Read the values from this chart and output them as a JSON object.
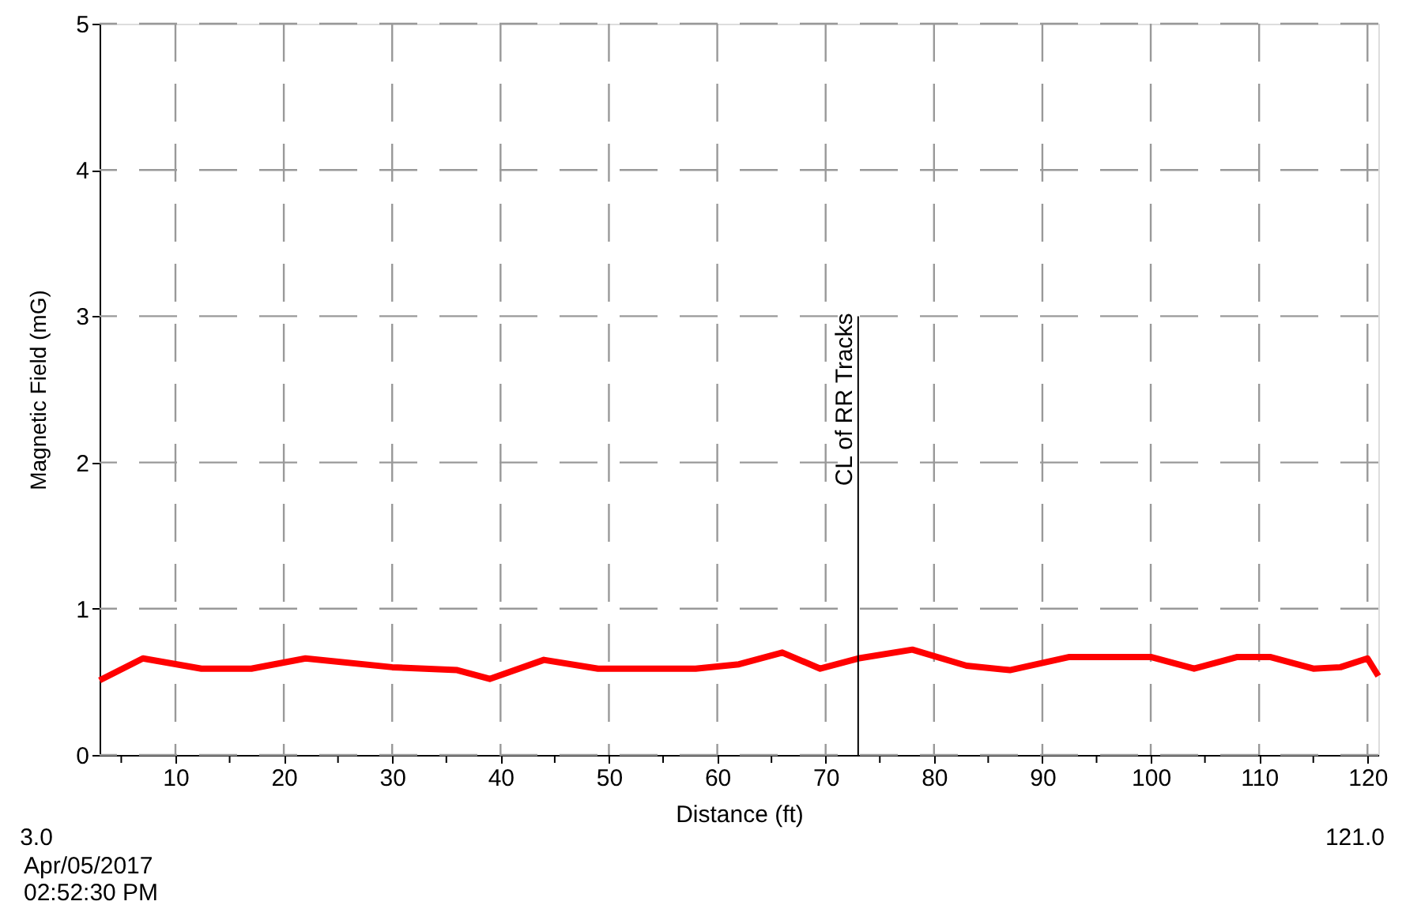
{
  "chart_data": {
    "type": "line",
    "xlabel": "Distance (ft)",
    "ylabel": "Magnetic Field (mG)",
    "x": [
      3,
      7,
      12.4,
      17,
      22,
      30,
      36,
      39,
      44,
      49,
      58,
      62,
      66,
      69.5,
      73,
      78,
      83,
      87,
      92.5,
      100,
      104,
      108,
      111,
      115,
      117.5,
      120,
      121
    ],
    "series": [
      {
        "color": "#ff0000",
        "values": [
          0.51,
          0.66,
          0.59,
          0.59,
          0.66,
          0.6,
          0.58,
          0.52,
          0.65,
          0.59,
          0.59,
          0.62,
          0.7,
          0.59,
          0.66,
          0.72,
          0.61,
          0.58,
          0.67,
          0.67,
          0.59,
          0.67,
          0.67,
          0.59,
          0.6,
          0.66,
          0.54
        ]
      }
    ],
    "xlim": [
      3,
      121
    ],
    "ylim": [
      0,
      5
    ],
    "xticks": [
      {
        "value": 5,
        "label": null
      },
      10,
      {
        "value": 15,
        "label": null
      },
      20,
      {
        "value": 25,
        "label": null
      },
      30,
      {
        "value": 35,
        "label": null
      },
      40,
      {
        "value": 45,
        "label": null
      },
      50,
      {
        "value": 55,
        "label": null
      },
      60,
      {
        "value": 65,
        "label": null
      },
      70,
      {
        "value": 75,
        "label": null
      },
      80,
      {
        "value": 85,
        "label": null
      },
      90,
      {
        "value": 95,
        "label": null
      },
      100,
      {
        "value": 105,
        "label": null
      },
      110,
      {
        "value": 115,
        "label": null
      },
      120
    ],
    "yticks": [
      0,
      1,
      2,
      3,
      4,
      5
    ],
    "ref_lines": [
      {
        "axis": "x",
        "value": 73,
        "label": "CL of RR Tracks",
        "color": "#000000"
      }
    ],
    "annotations": [
      "3.0",
      "121.0",
      "Apr/05/2017",
      "02:52:30 PM"
    ],
    "grid": true,
    "marker": "none",
    "line_style": "solid"
  }
}
